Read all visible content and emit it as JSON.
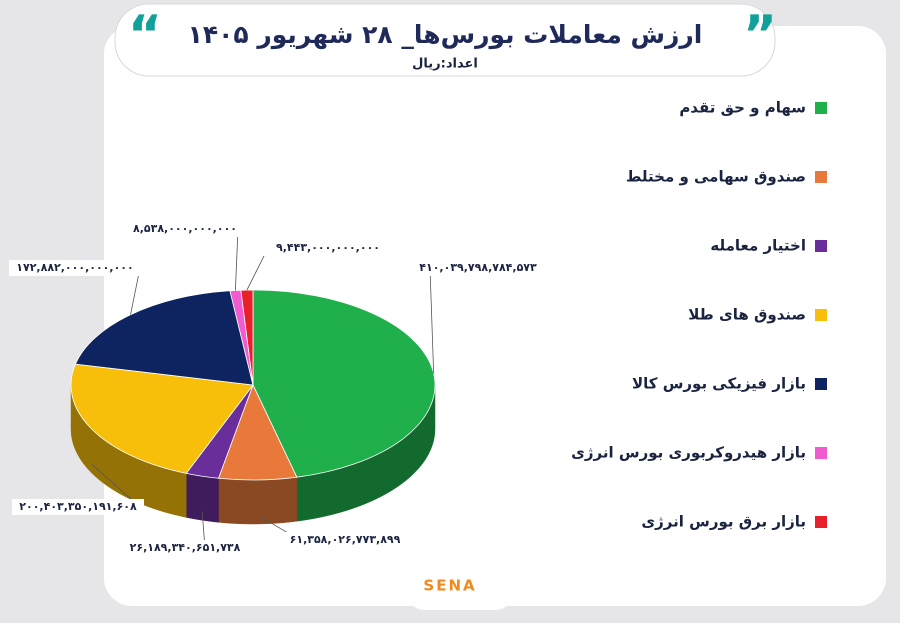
{
  "chart_data": {
    "type": "pie",
    "title": "ارزش معاملات بورس‌ها_ ۲۸ شهریور ۱۴۰۵",
    "subtitle": "اعداد:ریال",
    "source": "SENA",
    "series": [
      {
        "name": "سهام و حق تقدم",
        "color": "#1fb04c",
        "values": [
          410039798784573
        ],
        "value_labels": [
          "۴۱۰,۰۳۹,۷۹۸,۷۸۴,۵۷۳"
        ]
      },
      {
        "name": "صندوق سهامی و مختلط",
        "color": "#e8793a",
        "values": [
          61358026773899
        ],
        "value_labels": [
          "۶۱,۳۵۸,۰۲۶,۷۷۳,۸۹۹"
        ]
      },
      {
        "name": "اختیار معامله",
        "color": "#6a2e9a",
        "values": [
          26189340651738
        ],
        "value_labels": [
          "۲۶,۱۸۹,۳۴۰,۶۵۱,۷۳۸"
        ]
      },
      {
        "name": "صندوق های طلا",
        "color": "#f7be0a",
        "values": [
          200403350191608
        ],
        "value_labels": [
          "۲۰۰,۴۰۳,۳۵۰,۱۹۱,۶۰۸"
        ]
      },
      {
        "name": "بازار فیزیکی بورس کالا",
        "color": "#0d2460",
        "values": [
          172882000000000
        ],
        "value_labels": [
          "۱۷۲,۸۸۲,۰۰۰,۰۰۰,۰۰۰"
        ]
      },
      {
        "name": "بازار هیدروکربوری بورس انرژی",
        "color": "#f05bd0",
        "values": [
          8538000000000
        ],
        "value_labels": [
          "۸,۵۳۸,۰۰۰,۰۰۰,۰۰۰"
        ]
      },
      {
        "name": "بازار برق بورس انرژی",
        "color": "#e8202a",
        "values": [
          9443000000000
        ],
        "value_labels": [
          "۹,۴۴۳,۰۰۰,۰۰۰,۰۰۰"
        ]
      }
    ],
    "legend": "right"
  }
}
